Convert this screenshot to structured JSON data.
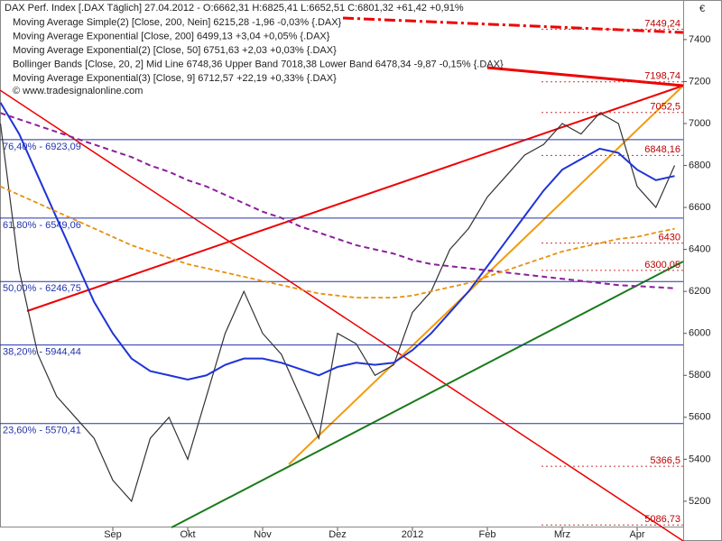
{
  "chart_data": {
    "type": "line",
    "title": "DAX Perf. Index [.DAX  Täglich] 27.04.2012 - O:6662,31 H:6825,41 L:6652,51 C:6801,32 +61,42 +0,91%",
    "currency": "€",
    "watermark": "© www.tradesignalonline.com",
    "legend": [
      "Moving Average Simple(2) [Close, 200, Nein] 6215,28 -1,96 -0,03% {.DAX}",
      "Moving Average Exponential [Close, 200] 6499,13 +3,04 +0,05% {.DAX}",
      "Moving Average Exponential(2) [Close, 50] 6751,63 +2,03 +0,03% {.DAX}",
      "Bollinger Bands [Close, 20, 2] Mid Line 6748,36 Upper Band 7018,38 Lower Band 6478,34 -9,87 -0,15% {.DAX}",
      "Moving Average Exponential(3) [Close, 9] 6712,57 +22,19 +0,33% {.DAX}"
    ],
    "categories": [
      null,
      null,
      null,
      null,
      null,
      null,
      "Sep",
      null,
      null,
      null,
      "Okt",
      null,
      null,
      null,
      "Nov",
      null,
      null,
      null,
      "Dez",
      null,
      null,
      null,
      "2012",
      null,
      null,
      null,
      "Feb",
      null,
      null,
      null,
      "Mrz",
      null,
      null,
      null,
      "Apr",
      null,
      null
    ],
    "series": [
      {
        "name": "Close",
        "color": "#333333",
        "dash": "none",
        "width": 1.2,
        "values": [
          7000,
          6300,
          5900,
          5700,
          5600,
          5500,
          5300,
          5200,
          5500,
          5600,
          5400,
          5700,
          6000,
          6200,
          6000,
          5900,
          5700,
          5500,
          6000,
          5950,
          5800,
          5850,
          6100,
          6200,
          6400,
          6500,
          6650,
          6750,
          6850,
          6900,
          7000,
          6950,
          7050,
          7000,
          6700,
          6600,
          6800
        ]
      },
      {
        "name": "EMA 50",
        "color": "#1f33d6",
        "dash": "none",
        "width": 2,
        "values": [
          7100,
          6950,
          6750,
          6550,
          6350,
          6150,
          6000,
          5880,
          5820,
          5800,
          5780,
          5800,
          5850,
          5880,
          5880,
          5860,
          5830,
          5800,
          5840,
          5860,
          5850,
          5860,
          5920,
          6000,
          6100,
          6200,
          6320,
          6440,
          6560,
          6680,
          6780,
          6830,
          6880,
          6860,
          6780,
          6730,
          6750
        ]
      },
      {
        "name": "SMA 200",
        "color": "#8b1f9c",
        "dash": "6 4",
        "width": 2,
        "values": [
          7050,
          7020,
          6990,
          6960,
          6930,
          6900,
          6870,
          6840,
          6800,
          6770,
          6730,
          6700,
          6660,
          6620,
          6580,
          6550,
          6510,
          6480,
          6450,
          6420,
          6400,
          6380,
          6350,
          6330,
          6320,
          6310,
          6300,
          6290,
          6280,
          6270,
          6260,
          6250,
          6240,
          6230,
          6225,
          6220,
          6215
        ]
      },
      {
        "name": "EMA 200",
        "color": "#e8900c",
        "dash": "5 3",
        "width": 1.8,
        "values": [
          6700,
          6660,
          6620,
          6580,
          6540,
          6500,
          6460,
          6420,
          6390,
          6360,
          6330,
          6310,
          6290,
          6270,
          6250,
          6230,
          6210,
          6190,
          6180,
          6170,
          6170,
          6170,
          6180,
          6200,
          6220,
          6240,
          6270,
          6300,
          6330,
          6360,
          6390,
          6410,
          6430,
          6450,
          6460,
          6480,
          6499
        ]
      }
    ],
    "levels": [
      {
        "label": "76,40% - 6923,09",
        "value": 6923.09
      },
      {
        "label": "61,80% - 6549,06",
        "value": 6549.06
      },
      {
        "label": "50,00% - 6246,75",
        "value": 6246.75
      },
      {
        "label": "38,20% - 5944,44",
        "value": 5944.44
      },
      {
        "label": "23,60% - 5570,41",
        "value": 5570.41
      }
    ],
    "price_labels": [
      {
        "label": "7449,24",
        "value": 7449.24
      },
      {
        "label": "7198,74",
        "value": 7198.74
      },
      {
        "label": "7052,5",
        "value": 7052.5
      },
      {
        "label": "6848,16",
        "value": 6848.16
      },
      {
        "label": "6430",
        "value": 6430
      },
      {
        "label": "6300,05",
        "value": 6300.05
      },
      {
        "label": "5366,5",
        "value": 5366.5
      },
      {
        "label": "5086,73",
        "value": 5086.73
      }
    ],
    "ylim": [
      5075,
      7580
    ],
    "yticks": [
      5200,
      5400,
      5600,
      5800,
      6000,
      6200,
      6400,
      6600,
      6800,
      7000,
      7200,
      7400
    ]
  }
}
